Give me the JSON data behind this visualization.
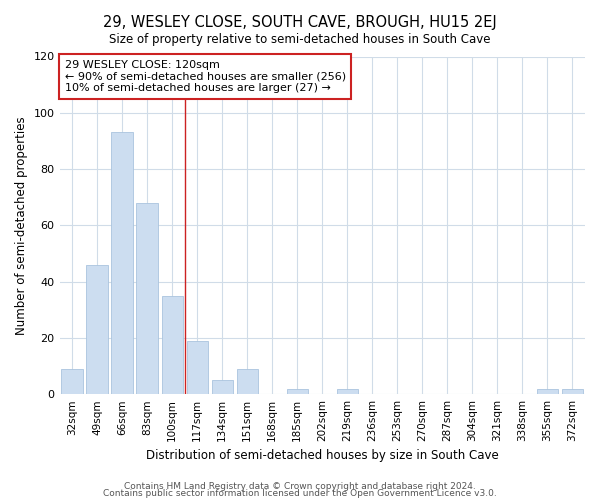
{
  "title": "29, WESLEY CLOSE, SOUTH CAVE, BROUGH, HU15 2EJ",
  "subtitle": "Size of property relative to semi-detached houses in South Cave",
  "xlabel": "Distribution of semi-detached houses by size in South Cave",
  "ylabel": "Number of semi-detached properties",
  "bar_color": "#ccddf0",
  "bar_edge_color": "#aac4de",
  "categories": [
    "32sqm",
    "49sqm",
    "66sqm",
    "83sqm",
    "100sqm",
    "117sqm",
    "134sqm",
    "151sqm",
    "168sqm",
    "185sqm",
    "202sqm",
    "219sqm",
    "236sqm",
    "253sqm",
    "270sqm",
    "287sqm",
    "304sqm",
    "321sqm",
    "338sqm",
    "355sqm",
    "372sqm"
  ],
  "values": [
    9,
    46,
    93,
    68,
    35,
    19,
    5,
    9,
    0,
    2,
    0,
    2,
    0,
    0,
    0,
    0,
    0,
    0,
    0,
    2,
    2
  ],
  "vline_index": 4.5,
  "annotation_line1": "29 WESLEY CLOSE: 120sqm",
  "annotation_line2": "← 90% of semi-detached houses are smaller (256)",
  "annotation_line3": "10% of semi-detached houses are larger (27) →",
  "annotation_box_color": "#ffffff",
  "annotation_box_edge": "#cc2222",
  "vline_color": "#cc2222",
  "ylim": [
    0,
    120
  ],
  "yticks": [
    0,
    20,
    40,
    60,
    80,
    100,
    120
  ],
  "footer1": "Contains HM Land Registry data © Crown copyright and database right 2024.",
  "footer2": "Contains public sector information licensed under the Open Government Licence v3.0.",
  "bg_color": "#ffffff",
  "plot_bg_color": "#ffffff",
  "grid_color": "#d0dce8"
}
